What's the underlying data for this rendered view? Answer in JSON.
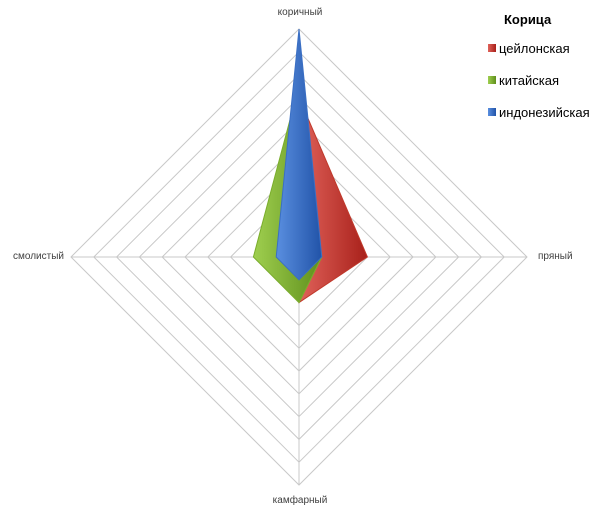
{
  "chart_data": {
    "type": "radar",
    "title": "Корица",
    "axes": [
      "коричный",
      "пряный",
      "камфарный",
      "смолистый"
    ],
    "rmax": 10,
    "grid_levels": 10,
    "grid": true,
    "legend_position": "top-right",
    "series": [
      {
        "name": "цейлонская",
        "values": [
          7,
          3,
          2,
          0
        ],
        "color": "#c0392b"
      },
      {
        "name": "китайская",
        "values": [
          7.5,
          1,
          2,
          2
        ],
        "color": "#7aad2c"
      },
      {
        "name": "индонезийская",
        "values": [
          10,
          1,
          1,
          1
        ],
        "color": "#3a6fc4"
      }
    ]
  }
}
